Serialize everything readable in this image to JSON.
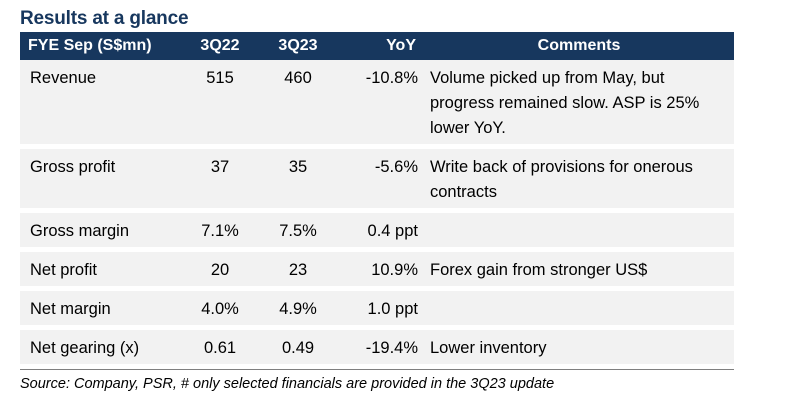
{
  "title": "Results at a glance",
  "table": {
    "headers": {
      "label": "FYE Sep (S$mn)",
      "q22": "3Q22",
      "q23": "3Q23",
      "yoy": "YoY",
      "comments": "Comments"
    },
    "rows": [
      {
        "label": "Revenue",
        "q22": "515",
        "q23": "460",
        "yoy": "-10.8%",
        "comments": "Volume picked up from May, but progress remained slow. ASP is 25% lower YoY."
      },
      {
        "label": "Gross profit",
        "q22": "37",
        "q23": "35",
        "yoy": "-5.6%",
        "comments": "Write back of provisions for onerous contracts"
      },
      {
        "label": "Gross margin",
        "q22": "7.1%",
        "q23": "7.5%",
        "yoy": "0.4 ppt",
        "comments": ""
      },
      {
        "label": "Net profit",
        "q22": "20",
        "q23": "23",
        "yoy": "10.9%",
        "comments": "Forex gain from stronger US$"
      },
      {
        "label": "Net margin",
        "q22": "4.0%",
        "q23": "4.9%",
        "yoy": "1.0 ppt",
        "comments": ""
      },
      {
        "label": "Net gearing (x)",
        "q22": "0.61",
        "q23": "0.49",
        "yoy": "-19.4%",
        "comments": "Lower inventory"
      }
    ]
  },
  "source": "Source: Company, PSR, # only selected financials are provided in the 3Q23 update"
}
